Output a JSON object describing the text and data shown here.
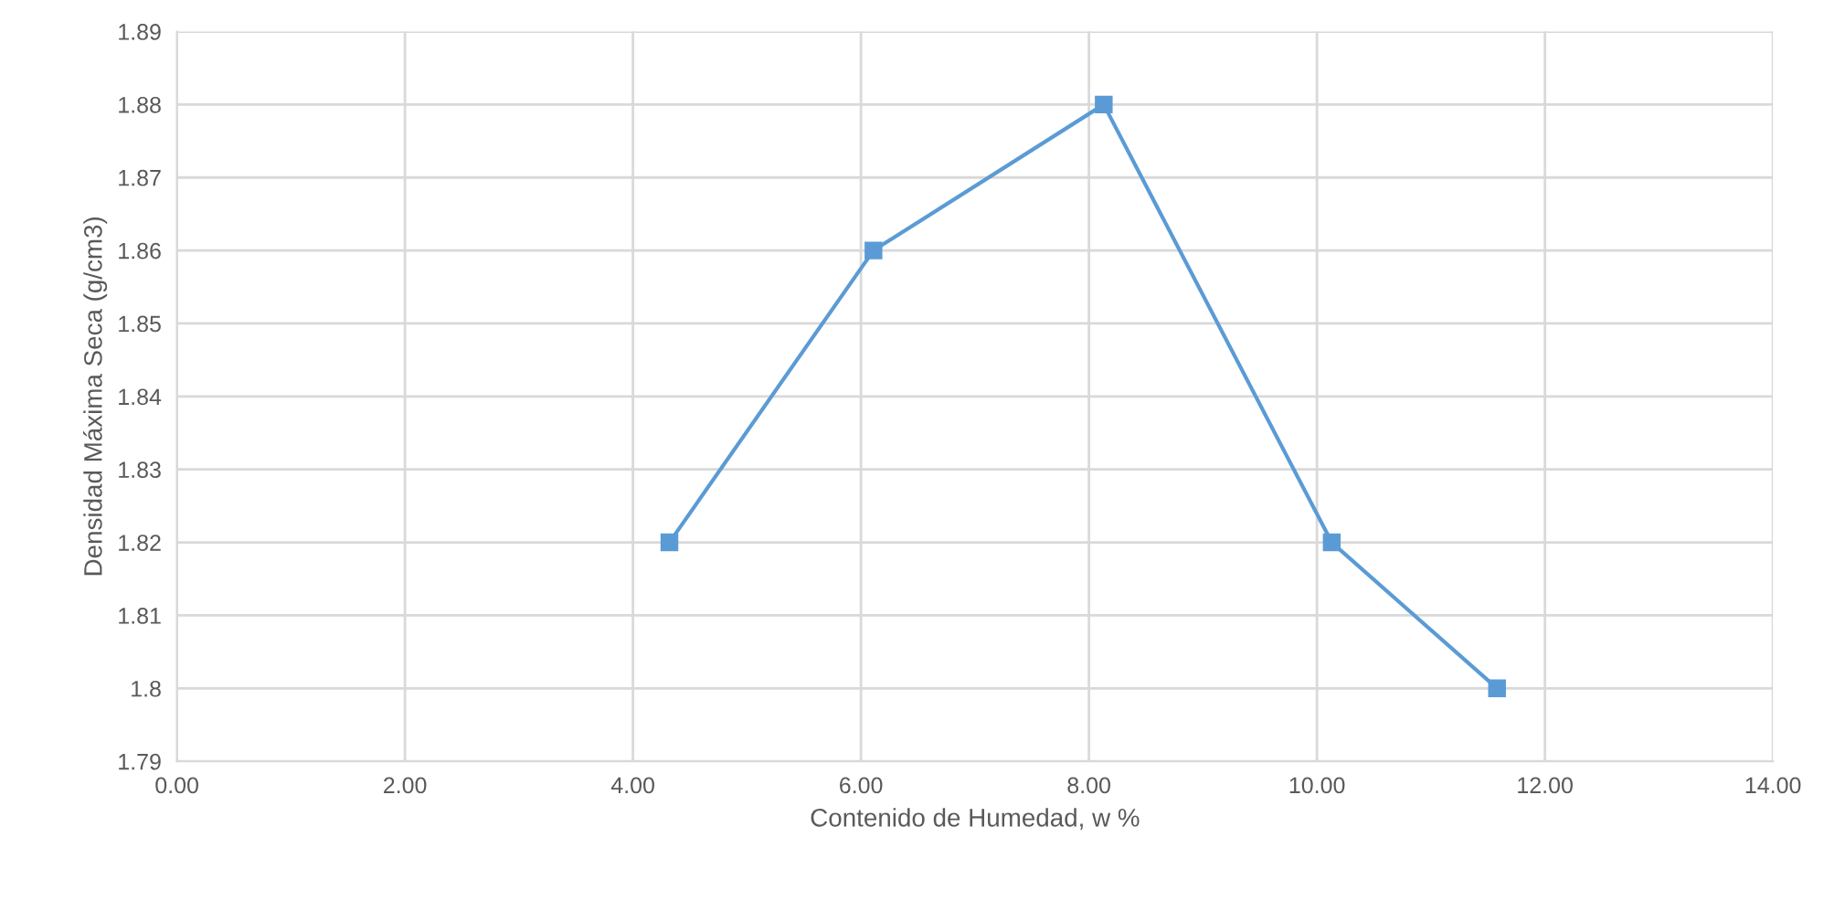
{
  "chart_data": {
    "type": "line",
    "xlabel": "Contenido de Humedad, w %",
    "ylabel": "Densidad Máxima Seca (g/cm3)",
    "x": [
      4.32,
      6.11,
      8.13,
      10.13,
      11.58
    ],
    "series": [
      {
        "color": "#5b9bd5",
        "values": [
          1.82,
          1.86,
          1.88,
          1.82,
          1.8
        ]
      }
    ],
    "xlim": [
      0,
      14
    ],
    "xticks": [
      {
        "value": 0,
        "label": "0.00"
      },
      {
        "value": 2,
        "label": "2.00"
      },
      {
        "value": 4,
        "label": "4.00"
      },
      {
        "value": 6,
        "label": "6.00"
      },
      {
        "value": 8,
        "label": "8.00"
      },
      {
        "value": 10,
        "label": "10.00"
      },
      {
        "value": 12,
        "label": "12.00"
      },
      {
        "value": 14,
        "label": "14.00"
      }
    ],
    "ylim": [
      1.79,
      1.89
    ],
    "yticks": [
      1.79,
      1.8,
      1.81,
      1.82,
      1.83,
      1.84,
      1.85,
      1.86,
      1.87,
      1.88,
      1.89
    ],
    "grid": true,
    "marker": "square",
    "line_style": "solid"
  }
}
